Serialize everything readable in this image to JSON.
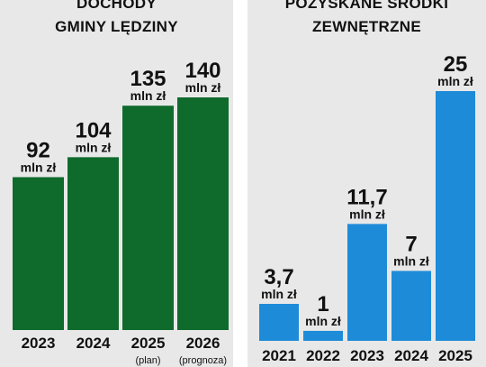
{
  "colors": {
    "left_bar": "#0f6b2c",
    "right_bar": "#1e8bd8",
    "panel_bg": "#e8e8e8"
  },
  "chart_data": [
    {
      "type": "bar",
      "title_lines": [
        "DOCHODY",
        "GMINY LĘDZINY"
      ],
      "categories": [
        "2023",
        "2024",
        "2025",
        "2026"
      ],
      "category_notes": [
        "",
        "",
        "(plan)",
        "(prognoza)"
      ],
      "values": [
        92,
        104,
        135,
        140
      ],
      "value_labels": [
        "92",
        "104",
        "135",
        "140"
      ],
      "unit": "mln zł",
      "ylim": [
        0,
        140
      ]
    },
    {
      "type": "bar",
      "title_lines": [
        "POZYSKANE ŚRODKI",
        "ZEWNĘTRZNE"
      ],
      "categories": [
        "2021",
        "2022",
        "2023",
        "2024",
        "2025"
      ],
      "values": [
        3.7,
        1,
        11.7,
        7,
        25
      ],
      "value_labels": [
        "3,7",
        "1",
        "11,7",
        "7",
        "25"
      ],
      "unit": "mln zł",
      "ylim": [
        0,
        25
      ]
    }
  ]
}
